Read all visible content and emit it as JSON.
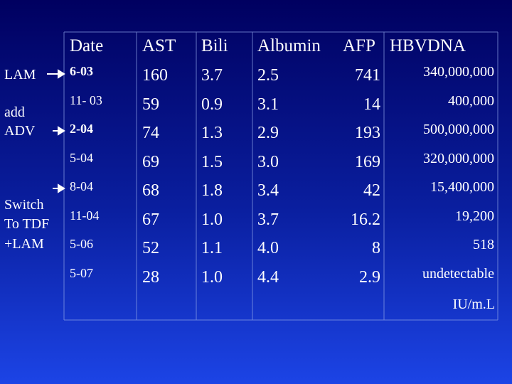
{
  "table": {
    "header": [
      "Date",
      "AST",
      "Bili",
      "Albumin",
      "AFP",
      "HBVDNA"
    ],
    "rows": [
      [
        "6-03",
        "160",
        "3.7",
        "2.5",
        "741",
        "340,000,000"
      ],
      [
        "11- 03",
        "59",
        "0.9",
        "3.1",
        "14",
        "400,000"
      ],
      [
        "2-04",
        "74",
        "1.3",
        "2.9",
        "193",
        "500,000,000"
      ],
      [
        "5-04",
        "69",
        "1.5",
        "3.0",
        "169",
        "320,000,000"
      ],
      [
        "8-04",
        "68",
        "1.8",
        "3.4",
        "42",
        "15,400,000"
      ],
      [
        "11-04",
        "67",
        "1.0",
        "3.7",
        "16.2",
        "19,200"
      ],
      [
        "5-06",
        "52",
        "1.1",
        "4.0",
        "8",
        "518"
      ],
      [
        "5-07",
        "28",
        "1.0",
        "4.4",
        "2.9",
        "undetectable"
      ]
    ],
    "unit": "IU/m.L"
  },
  "annotations": {
    "lam": "LAM",
    "add": "add",
    "adv": "ADV",
    "switch": "Switch",
    "to_tdf": "To TDF",
    "plus_lam": "+LAM"
  }
}
